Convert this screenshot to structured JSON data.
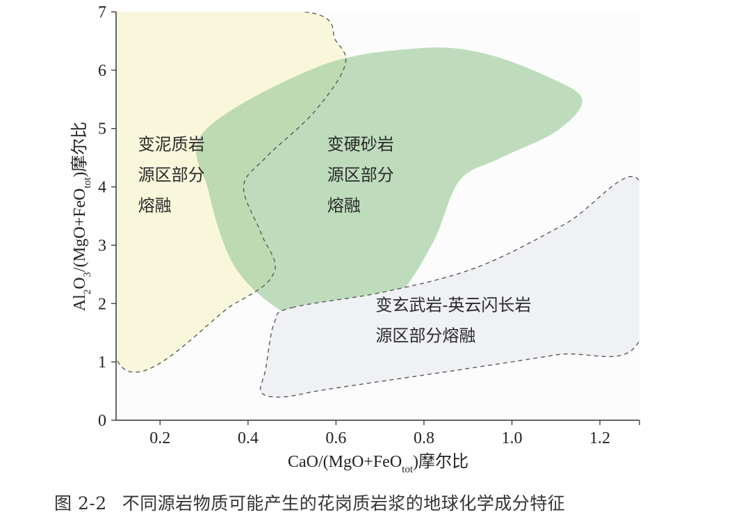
{
  "chart_data": {
    "type": "scatter",
    "subtype": "discrimination-diagram",
    "xlabel_parts": [
      "CaO/(MgO+FeO",
      "tot",
      ")摩尔比"
    ],
    "ylabel_parts": [
      "Al",
      "2",
      "O",
      "3",
      "/(MgO+FeO",
      "tot",
      ")摩尔比"
    ],
    "xlim": [
      0.1,
      1.29
    ],
    "ylim": [
      0,
      7
    ],
    "x_ticks": [
      "0.2",
      "0.4",
      "0.6",
      "0.8",
      "1.0",
      "1.2"
    ],
    "y_ticks": [
      "0",
      "1",
      "2",
      "3",
      "4",
      "5",
      "6",
      "7"
    ],
    "grid": false,
    "regions": [
      {
        "label_lines": [
          "变泥质岩",
          "源区部分",
          "熔融"
        ],
        "fill": "#f8f7dc",
        "boundary": "dashed",
        "outline": [
          [
            0.1,
            1.07
          ],
          [
            0.1,
            7.0
          ],
          [
            0.53,
            7.0
          ],
          [
            0.6,
            6.5
          ],
          [
            0.62,
            6.07
          ],
          [
            0.55,
            5.28
          ],
          [
            0.44,
            4.5
          ],
          [
            0.39,
            4.0
          ],
          [
            0.43,
            3.2
          ],
          [
            0.46,
            2.55
          ],
          [
            0.37,
            2.0
          ],
          [
            0.1,
            1.07
          ]
        ]
      },
      {
        "label_lines": [
          "变硬砂岩",
          "源区部分",
          "熔融"
        ],
        "fill": "#a6d0a3",
        "boundary": "none",
        "outline": [
          [
            0.3,
            4.95
          ],
          [
            0.56,
            6.06
          ],
          [
            0.78,
            6.37
          ],
          [
            0.93,
            6.3
          ],
          [
            1.09,
            5.86
          ],
          [
            1.16,
            5.48
          ],
          [
            1.1,
            4.95
          ],
          [
            0.97,
            4.48
          ],
          [
            0.88,
            4.1
          ],
          [
            0.82,
            3.04
          ],
          [
            0.73,
            2.06
          ],
          [
            0.59,
            1.56
          ],
          [
            0.48,
            1.85
          ],
          [
            0.37,
            2.63
          ],
          [
            0.31,
            3.93
          ],
          [
            0.3,
            4.95
          ]
        ]
      },
      {
        "label_lines": [
          "变玄武岩-英云闪长岩",
          "源区部分熔融"
        ],
        "fill": "#eff1f4",
        "boundary": "dashed",
        "outline": [
          [
            0.5,
            1.93
          ],
          [
            0.71,
            2.2
          ],
          [
            0.92,
            2.62
          ],
          [
            1.12,
            3.36
          ],
          [
            1.29,
            4.1
          ],
          [
            1.29,
            1.37
          ],
          [
            1.1,
            1.12
          ],
          [
            0.85,
            0.83
          ],
          [
            0.58,
            0.53
          ],
          [
            0.48,
            0.4
          ],
          [
            0.43,
            0.48
          ],
          [
            0.44,
            0.87
          ],
          [
            0.46,
            1.68
          ],
          [
            0.5,
            1.93
          ]
        ]
      }
    ]
  },
  "caption": {
    "figure_number": "图 2-2",
    "text": "不同源岩物质可能产生的花岗质岩浆的地球化学成分特征"
  }
}
